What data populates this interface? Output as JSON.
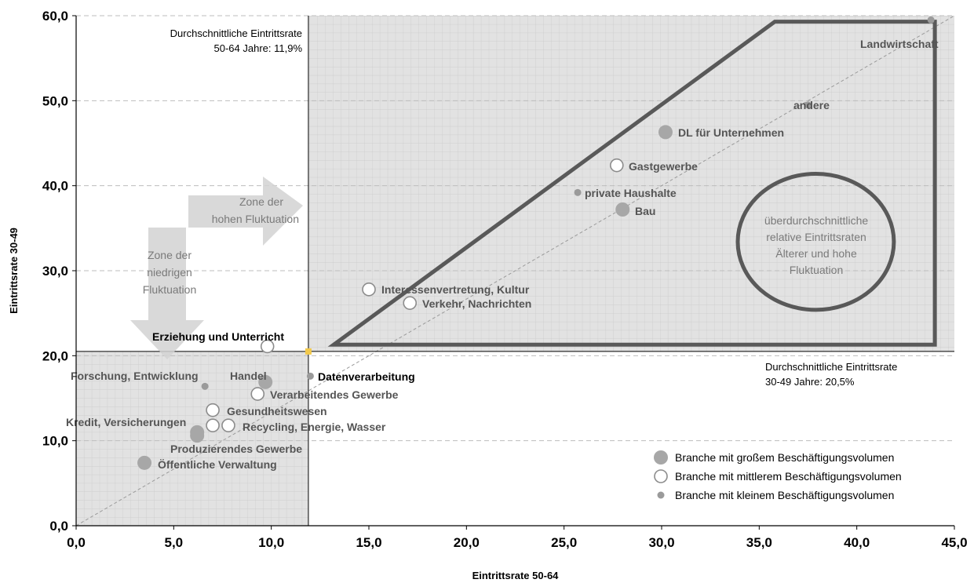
{
  "chart_data": {
    "type": "scatter",
    "xlabel": "Eintrittsrate 50-64",
    "ylabel": "Eintrittsrate 30-49",
    "xlim": [
      0,
      45
    ],
    "ylim": [
      0,
      60
    ],
    "x_ticks": [
      "0,0",
      "5,0",
      "10,0",
      "15,0",
      "20,0",
      "25,0",
      "30,0",
      "35,0",
      "40,0",
      "45,0"
    ],
    "y_ticks": [
      "0,0",
      "10,0",
      "20,0",
      "30,0",
      "40,0",
      "50,0",
      "60,0"
    ],
    "x_tick_values": [
      0,
      5,
      10,
      15,
      20,
      25,
      30,
      35,
      40,
      45
    ],
    "y_tick_values": [
      0,
      10,
      20,
      30,
      40,
      50,
      60
    ],
    "grid": true,
    "average_lines": {
      "x": 11.9,
      "y": 20.5,
      "x_label_line1": "Durchschnittliche Eintrittsrate",
      "x_label_line2": "50-64 Jahre: 11,9%",
      "y_label_line1": "Durchschnittliche Eintrittsrate",
      "y_label_line2": "30-49 Jahre: 20,5%"
    },
    "points": [
      {
        "label": "Landwirtschaft",
        "x": 43.8,
        "y": 59.5,
        "size": "small",
        "label_color": "#555555"
      },
      {
        "label": "andere",
        "x": 37.5,
        "y": 49.5,
        "size": "small",
        "label_color": "#555555"
      },
      {
        "label": "DL für Unternehmen",
        "x": 30.2,
        "y": 46.3,
        "size": "large",
        "label_color": "#555555"
      },
      {
        "label": "Gastgewerbe",
        "x": 27.7,
        "y": 42.4,
        "size": "medium",
        "label_color": "#555555"
      },
      {
        "label": "private Haushalte",
        "x": 25.7,
        "y": 39.2,
        "size": "small",
        "label_color": "#555555"
      },
      {
        "label": "Bau",
        "x": 28.0,
        "y": 37.2,
        "size": "large",
        "label_color": "#555555"
      },
      {
        "label": "Interessenvertretung, Kultur",
        "x": 15.0,
        "y": 27.8,
        "size": "medium",
        "label_color": "#555555"
      },
      {
        "label": "Verkehr, Nachrichten",
        "x": 17.1,
        "y": 26.2,
        "size": "medium",
        "label_color": "#555555"
      },
      {
        "label": "Erziehung und Unterricht",
        "x": 9.8,
        "y": 21.1,
        "size": "medium",
        "label_color": "#000000"
      },
      {
        "label": "Datenverarbeitung",
        "x": 12.0,
        "y": 17.6,
        "size": "small",
        "label_color": "#000000"
      },
      {
        "label": "Forschung, Entwicklung",
        "x": 6.6,
        "y": 16.4,
        "size": "small",
        "label_color": "#555555"
      },
      {
        "label": "Handel",
        "x": 9.7,
        "y": 16.9,
        "size": "large",
        "label_color": "#555555"
      },
      {
        "label": "Verarbeitendes Gewerbe",
        "x": 9.3,
        "y": 15.5,
        "size": "medium",
        "label_color": "#555555"
      },
      {
        "label": "Gesundheitswesen",
        "x": 7.0,
        "y": 13.6,
        "size": "medium",
        "label_color": "#555555"
      },
      {
        "label": "Kredit, Versicherungen",
        "x": 6.2,
        "y": 11.0,
        "size": "large",
        "label_color": "#555555"
      },
      {
        "label": "",
        "x": 7.0,
        "y": 11.8,
        "size": "medium",
        "label_color": "#555555"
      },
      {
        "label": "Recycling, Energie, Wasser",
        "x": 7.8,
        "y": 11.8,
        "size": "medium",
        "label_color": "#555555"
      },
      {
        "label": "Produzierendes Gewerbe",
        "x": 6.2,
        "y": 10.6,
        "size": "large",
        "label_color": "#555555"
      },
      {
        "label": "Öffentliche Verwaltung",
        "x": 3.5,
        "y": 7.4,
        "size": "large",
        "label_color": "#555555"
      }
    ],
    "legend": [
      {
        "size": "large",
        "label": "Branche mit großem Beschäftigungsvolumen"
      },
      {
        "size": "medium",
        "label": "Branche mit mittlerem Beschäftigungsvolumen"
      },
      {
        "size": "small",
        "label": "Branche mit kleinem Beschäftigungsvolumen"
      }
    ],
    "annotations": {
      "zone_high": [
        "Zone der",
        "hohen Fluktuation"
      ],
      "zone_low": [
        "Zone der",
        "niedrigen",
        "Fluktuation"
      ],
      "circle_text": [
        "überdurchschnittliche",
        "relative Eintrittsraten",
        "Älterer und hohe",
        "Fluktuation"
      ]
    },
    "colors": {
      "shade": "#e2e2e2",
      "marker_large": "#a7a7a7",
      "marker_medium_stroke": "#8c8c8c",
      "marker_small": "#9a9a9a",
      "trapezoid": "#595959",
      "arrow": "#d2d2d2",
      "avg_dot": "#f2c94c"
    }
  }
}
